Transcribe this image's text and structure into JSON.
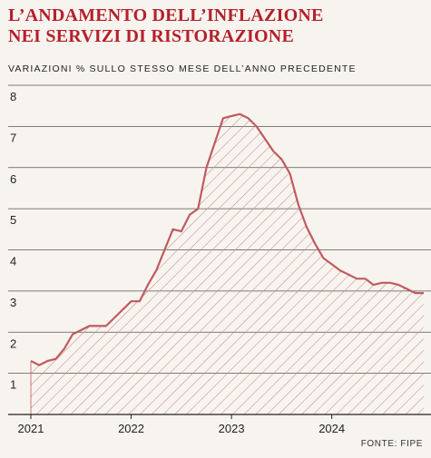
{
  "title_line1": "L’ANDAMENTO DELL’INFLAZIONE",
  "title_line2": "NEI SERVIZI DI RISTORAZIONE",
  "subtitle": "VARIAZIONI % SULLO STESSO MESE DELL’ANNO PRECEDENTE",
  "source": "FONTE: FIPE",
  "colors": {
    "accent": "#b5202b",
    "line": "#c05a5f",
    "hatch": "#c98a8c",
    "grid": "#555555"
  },
  "chart_data": {
    "type": "area",
    "title": "L’ANDAMENTO DELL’INFLAZIONE NEI SERVIZI DI RISTORAZIONE",
    "ylabel": "VARIAZIONI % SULLO STESSO MESE DELL’ANNO PRECEDENTE",
    "xlabel": "",
    "ylim": [
      0,
      8
    ],
    "yticks": [
      1,
      2,
      3,
      4,
      5,
      6,
      7,
      8
    ],
    "xticks": [
      "2021",
      "2022",
      "2023",
      "2024"
    ],
    "grid": "horizontal",
    "legend": "none",
    "x": [
      "2021-01",
      "2021-02",
      "2021-03",
      "2021-04",
      "2021-05",
      "2021-06",
      "2021-07",
      "2021-08",
      "2021-09",
      "2021-10",
      "2021-11",
      "2021-12",
      "2022-01",
      "2022-02",
      "2022-03",
      "2022-04",
      "2022-05",
      "2022-06",
      "2022-07",
      "2022-08",
      "2022-09",
      "2022-10",
      "2022-11",
      "2022-12",
      "2023-01",
      "2023-02",
      "2023-03",
      "2023-04",
      "2023-05",
      "2023-06",
      "2023-07",
      "2023-08",
      "2023-09",
      "2023-10",
      "2023-11",
      "2023-12",
      "2024-01",
      "2024-02",
      "2024-03",
      "2024-04",
      "2024-05",
      "2024-06",
      "2024-07",
      "2024-08",
      "2024-09",
      "2024-10",
      "2024-11",
      "2024-12"
    ],
    "values": [
      1.3,
      1.2,
      1.3,
      1.35,
      1.6,
      1.95,
      2.05,
      2.15,
      2.15,
      2.15,
      2.35,
      2.55,
      2.75,
      2.75,
      3.15,
      3.5,
      4.0,
      4.5,
      4.45,
      4.85,
      5.0,
      6.0,
      6.6,
      7.2,
      7.25,
      7.3,
      7.2,
      7.0,
      6.7,
      6.4,
      6.2,
      5.85,
      5.1,
      4.55,
      4.15,
      3.8,
      3.65,
      3.5,
      3.4,
      3.3,
      3.3,
      3.15,
      3.2,
      3.2,
      3.15,
      3.05,
      2.95,
      2.95
    ]
  }
}
